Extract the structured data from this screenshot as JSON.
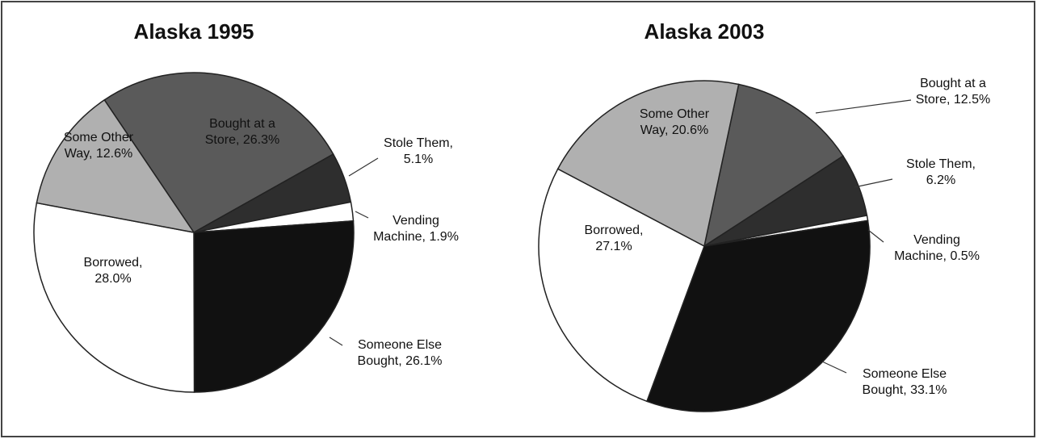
{
  "chart_data": [
    {
      "type": "pie",
      "title": "Alaska 1995",
      "values": [
        26.3,
        5.1,
        1.9,
        26.1,
        28.0,
        12.6
      ],
      "value_labels": [
        "Bought at a\nStore, 26.3%",
        "Stole Them,\n5.1%",
        "Vending\nMachine, 1.9%",
        "Someone Else\nBought, 26.1%",
        "Borrowed,\n28.0%",
        "Some Other\nWay, 12.6%"
      ],
      "colors": [
        "#5a5a5a",
        "#2e2e2e",
        "#ffffff",
        "#111111",
        "#ffffff",
        "#b0b0b0"
      ]
    },
    {
      "type": "pie",
      "title": "Alaska 2003",
      "values": [
        12.5,
        6.2,
        0.5,
        33.1,
        27.1,
        20.6
      ],
      "value_labels": [
        "Bought at a\nStore, 12.5%",
        "Stole Them,\n6.2%",
        "Vending\nMachine, 0.5%",
        "Someone Else\nBought, 33.1%",
        "Borrowed,\n27.1%",
        "Some Other\nWay, 20.6%"
      ],
      "colors": [
        "#5a5a5a",
        "#2e2e2e",
        "#ffffff",
        "#111111",
        "#ffffff",
        "#b0b0b0"
      ]
    }
  ]
}
